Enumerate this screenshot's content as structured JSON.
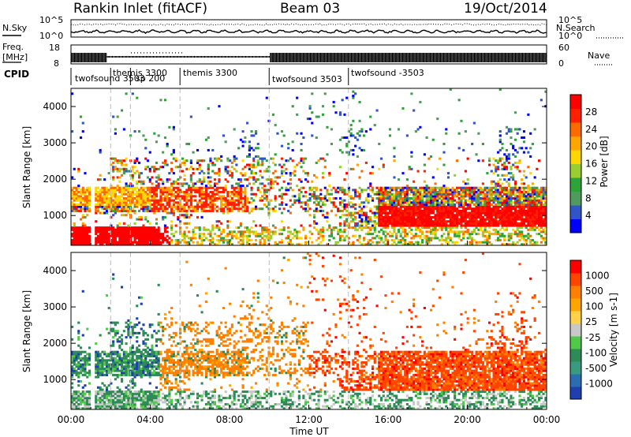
{
  "header": {
    "station": "Rankin Inlet (fitACF)",
    "beam": "Beam 03",
    "date": "19/Oct/2014"
  },
  "top_panels": {
    "nsky_label": "N.Sky",
    "nsky_ticks": [
      "10^5",
      "10^0"
    ],
    "nsearch_label": "N.Search",
    "nsearch_ticks": [
      "10^5",
      "10^0"
    ],
    "freq_label_1": "Freq.",
    "freq_label_2": "[MHz]",
    "freq_ticks": [
      "18",
      "8"
    ],
    "nave_label": "Nave",
    "nave_ticks": [
      "60",
      "0"
    ],
    "cpid_label": "CPID"
  },
  "cpid_segments": [
    {
      "label": "twofsound 3503",
      "start_h": 0.0,
      "end_h": 2.0
    },
    {
      "label": "themis 3300",
      "start_h": 2.0,
      "end_h": 3.0
    },
    {
      "label": "sp 200",
      "start_h": 3.0,
      "end_h": 5.5
    },
    {
      "label": "themis 3300",
      "start_h": 5.5,
      "end_h": 10.0
    },
    {
      "label": "twofsound 3503",
      "start_h": 10.0,
      "end_h": 14.0
    },
    {
      "label": "twofsound -3503",
      "start_h": 14.0,
      "end_h": 24.0
    }
  ],
  "chart_data": [
    {
      "type": "heatmap",
      "name": "power",
      "ylabel": "Slant Range [km]",
      "xlabel": "",
      "xlim": [
        0,
        24
      ],
      "ylim": [
        180,
        4500
      ],
      "yticks": [
        "1000",
        "2000",
        "3000",
        "4000"
      ],
      "colorbar": {
        "label": "Power [dB]",
        "ticks": [
          "4",
          "8",
          "12",
          "16",
          "20",
          "24",
          "28"
        ],
        "colors": [
          "#0000ff",
          "#2f55c8",
          "#4f9a5c",
          "#2ea339",
          "#9acd32",
          "#ffd700",
          "#ffa500",
          "#ff6a00",
          "#ff2000",
          "#ff0000"
        ]
      }
    },
    {
      "type": "heatmap",
      "name": "velocity",
      "ylabel": "Slant Range [km]",
      "xlabel": "Time UT",
      "xlim": [
        0,
        24
      ],
      "ylim": [
        180,
        4500
      ],
      "yticks": [
        "1000",
        "2000",
        "3000",
        "4000"
      ],
      "xticks": [
        "00:00",
        "04:00",
        "08:00",
        "12:00",
        "16:00",
        "20:00",
        "00:00"
      ],
      "colorbar": {
        "label": "Velocity [m s-1]",
        "ticks": [
          "1000",
          "500",
          "100",
          "25",
          "-25",
          "-100",
          "-500",
          "-1000"
        ],
        "colors": [
          "#1f3fb0",
          "#2b6db0",
          "#3a9a80",
          "#2e8b57",
          "#52c84a",
          "#c8c8c8",
          "#ffd24a",
          "#ffa500",
          "#ff7f00",
          "#ff4500",
          "#ff0000"
        ]
      }
    }
  ]
}
